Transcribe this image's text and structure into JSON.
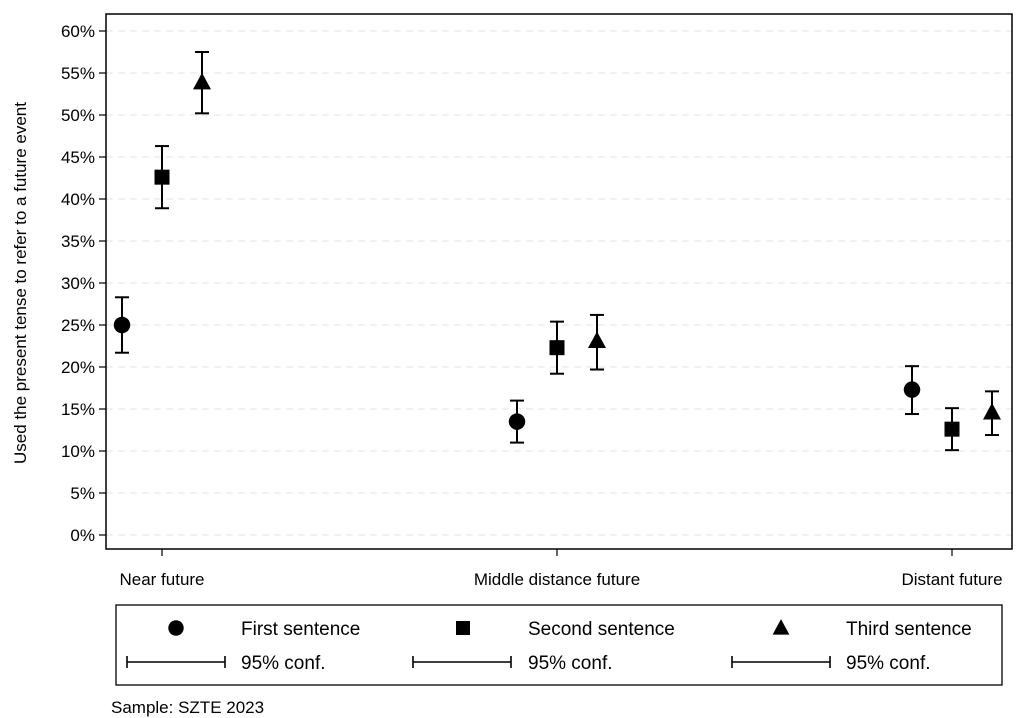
{
  "chart_data": {
    "type": "scatter",
    "categories": [
      "Near future",
      "Middle distance future",
      "Distant future"
    ],
    "ylabel": "Used the present tense to refer to a future event",
    "xlabel": "",
    "ylim": [
      0,
      0.6
    ],
    "yticks": [
      0,
      0.05,
      0.1,
      0.15,
      0.2,
      0.25,
      0.3,
      0.35,
      0.4,
      0.45,
      0.5,
      0.55,
      0.6
    ],
    "ytick_labels": [
      "0%",
      "5%",
      "10%",
      "15%",
      "20%",
      "25%",
      "30%",
      "35%",
      "40%",
      "45%",
      "50%",
      "55%",
      "60%"
    ],
    "grid": true,
    "series": [
      {
        "name": "First sentence",
        "marker": "circle",
        "values": [
          0.25,
          0.135,
          0.173
        ],
        "ci_low": [
          0.217,
          0.11,
          0.144
        ],
        "ci_high": [
          0.283,
          0.16,
          0.201
        ]
      },
      {
        "name": "Second sentence",
        "marker": "square",
        "values": [
          0.426,
          0.223,
          0.126
        ],
        "ci_low": [
          0.389,
          0.192,
          0.101
        ],
        "ci_high": [
          0.463,
          0.254,
          0.151
        ]
      },
      {
        "name": "Third sentence",
        "marker": "triangle",
        "values": [
          0.539,
          0.231,
          0.146
        ],
        "ci_low": [
          0.502,
          0.197,
          0.119
        ],
        "ci_high": [
          0.575,
          0.262,
          0.171
        ]
      }
    ],
    "legend": {
      "placement": "bottom",
      "ci_label": "95% conf."
    },
    "note": "Sample: SZTE 2023"
  }
}
